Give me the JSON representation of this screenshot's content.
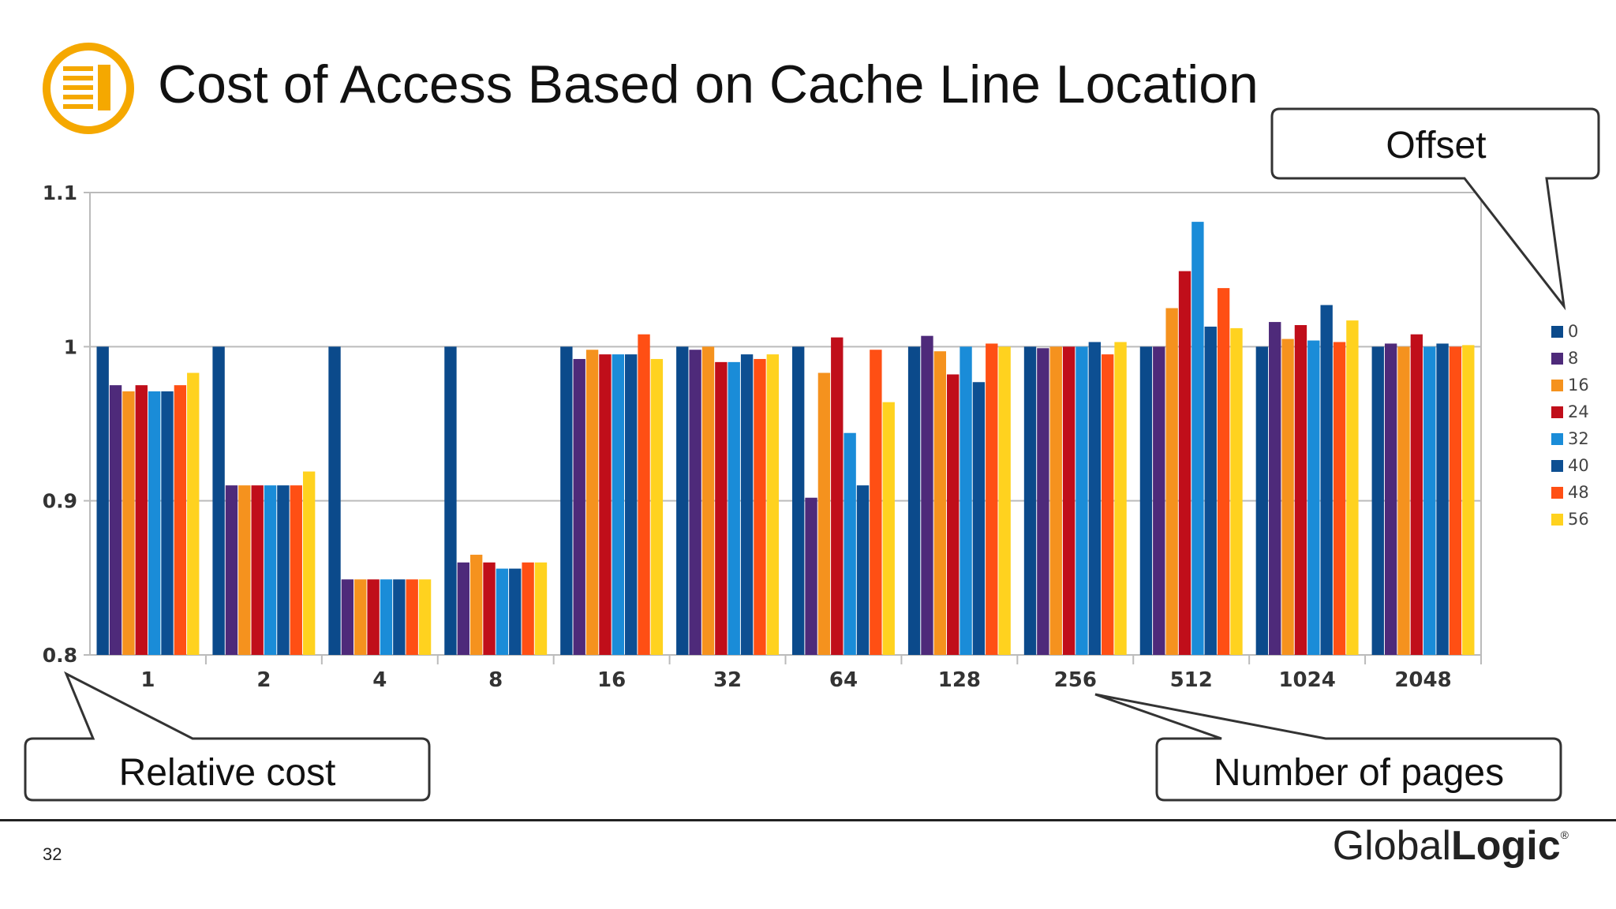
{
  "slide": {
    "title": "Cost of Access Based on Cache Line Location",
    "page_number": "32",
    "brand_light": "Global",
    "brand_bold": "Logic",
    "brand_mark": "®",
    "icon": "document-list-icon",
    "accent_color": "#F5A800"
  },
  "callouts": {
    "offset": "Offset",
    "relative_cost": "Relative cost",
    "number_of_pages": "Number of pages"
  },
  "chart_data": {
    "type": "bar",
    "title": "",
    "xlabel": "",
    "ylabel": "",
    "ylim": [
      0.8,
      1.1
    ],
    "yticks": [
      "0.8",
      "0.9",
      "1",
      "1.1"
    ],
    "grid": true,
    "legend_position": "right",
    "categories": [
      "1",
      "2",
      "4",
      "8",
      "16",
      "32",
      "64",
      "128",
      "256",
      "512",
      "1024",
      "2048"
    ],
    "series": [
      {
        "name": "0",
        "color": "#0B4A8B",
        "values": [
          1.0,
          1.0,
          1.0,
          1.0,
          1.0,
          1.0,
          1.0,
          1.0,
          1.0,
          1.0,
          1.0,
          1.0
        ]
      },
      {
        "name": "8",
        "color": "#4E2A7A",
        "values": [
          0.975,
          0.91,
          0.849,
          0.86,
          0.992,
          0.998,
          0.902,
          1.007,
          0.999,
          1.0,
          1.016,
          1.002
        ]
      },
      {
        "name": "16",
        "color": "#F5921E",
        "values": [
          0.971,
          0.91,
          0.849,
          0.865,
          0.998,
          1.0,
          0.983,
          0.997,
          1.0,
          1.025,
          1.005,
          1.0
        ]
      },
      {
        "name": "24",
        "color": "#C00E1A",
        "values": [
          0.975,
          0.91,
          0.849,
          0.86,
          0.995,
          0.99,
          1.006,
          0.982,
          1.0,
          1.049,
          1.014,
          1.008
        ]
      },
      {
        "name": "32",
        "color": "#1A8CD8",
        "values": [
          0.971,
          0.91,
          0.849,
          0.856,
          0.995,
          0.99,
          0.944,
          1.0,
          1.0,
          1.081,
          1.004,
          1.0
        ]
      },
      {
        "name": "40",
        "color": "#0D4F92",
        "values": [
          0.971,
          0.91,
          0.849,
          0.856,
          0.995,
          0.995,
          0.91,
          0.977,
          1.003,
          1.013,
          1.027,
          1.002
        ]
      },
      {
        "name": "48",
        "color": "#FF4F14",
        "values": [
          0.975,
          0.91,
          0.849,
          0.86,
          1.008,
          0.992,
          0.998,
          1.002,
          0.995,
          1.038,
          1.003,
          1.0
        ]
      },
      {
        "name": "56",
        "color": "#FFD21F",
        "values": [
          0.983,
          0.919,
          0.849,
          0.86,
          0.992,
          0.995,
          0.964,
          1.0,
          1.003,
          1.012,
          1.017,
          1.001
        ]
      }
    ]
  }
}
